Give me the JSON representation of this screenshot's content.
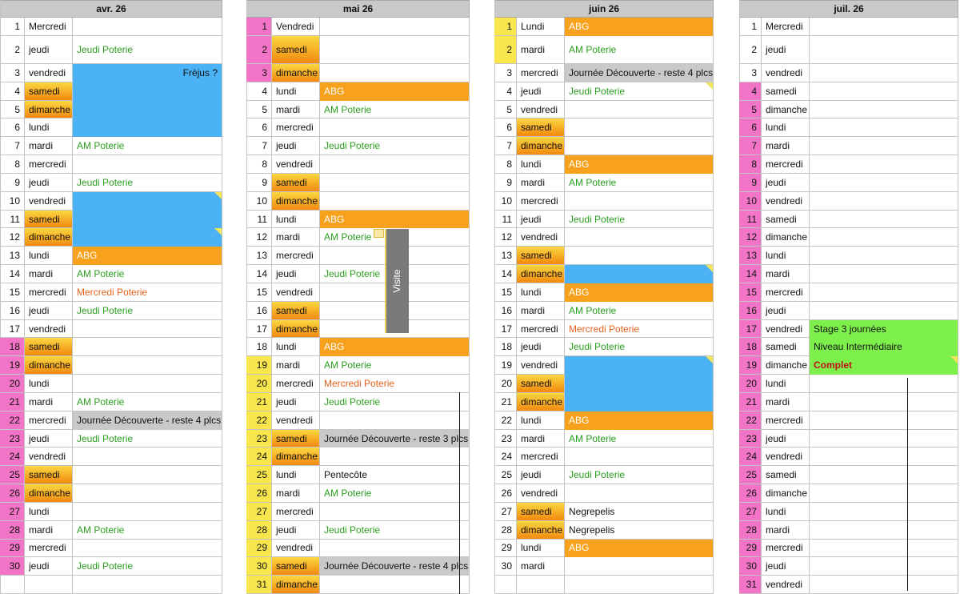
{
  "months": [
    {
      "title": "avr. 26",
      "rows": [
        {
          "num": 1,
          "day": "Mercredi"
        },
        {
          "num": 2,
          "day": "jeudi",
          "event": "Jeudi Poterie",
          "color": "#2b9e1e"
        },
        {
          "num": 3,
          "day": "vendredi",
          "fill": "#4bb2f6",
          "event": "Frèjus ?",
          "color": "#111111",
          "align": "right"
        },
        {
          "num": 4,
          "day": "samedi",
          "weekend": true,
          "fill": "#4bb2f6"
        },
        {
          "num": 5,
          "day": "dimanche",
          "weekend": true,
          "fill": "#4bb2f6"
        },
        {
          "num": 6,
          "day": "lundi",
          "fill": "#4bb2f6"
        },
        {
          "num": 7,
          "day": "mardi",
          "event": "AM Poterie",
          "color": "#2b9e1e"
        },
        {
          "num": 8,
          "day": "mercredi"
        },
        {
          "num": 9,
          "day": "jeudi",
          "event": "Jeudi Poterie",
          "color": "#2b9e1e"
        },
        {
          "num": 10,
          "day": "vendredi",
          "fill": "#4bb2f6",
          "corner": true
        },
        {
          "num": 11,
          "day": "samedi",
          "weekend": true,
          "fill": "#4bb2f6"
        },
        {
          "num": 12,
          "day": "dimanche",
          "weekend": true,
          "fill": "#4bb2f6",
          "corner": true
        },
        {
          "num": 13,
          "day": "lundi",
          "fill": "#f7a11c",
          "event": "ABG",
          "color": "#ffffff"
        },
        {
          "num": 14,
          "day": "mardi",
          "event": "AM Poterie",
          "color": "#2b9e1e"
        },
        {
          "num": 15,
          "day": "mercredi",
          "event": "Mercredi Poterie",
          "color": "#e5621c"
        },
        {
          "num": 16,
          "day": "jeudi",
          "event": "Jeudi Poterie",
          "color": "#2b9e1e"
        },
        {
          "num": 17,
          "day": "vendredi"
        },
        {
          "num": 18,
          "day": "samedi",
          "num_fill": "#f274c6",
          "weekend": true
        },
        {
          "num": 19,
          "day": "dimanche",
          "num_fill": "#f274c6",
          "weekend": true
        },
        {
          "num": 20,
          "day": "lundi",
          "num_fill": "#f274c6"
        },
        {
          "num": 21,
          "day": "mardi",
          "num_fill": "#f274c6",
          "event": "AM Poterie",
          "color": "#2b9e1e"
        },
        {
          "num": 22,
          "day": "mercredi",
          "num_fill": "#f274c6",
          "fill": "#c9c9c9",
          "event": "Journée Découverte - reste 4 plcs.",
          "color": "#111111"
        },
        {
          "num": 23,
          "day": "jeudi",
          "num_fill": "#f274c6",
          "event": "Jeudi Poterie",
          "color": "#2b9e1e"
        },
        {
          "num": 24,
          "day": "vendredi",
          "num_fill": "#f274c6"
        },
        {
          "num": 25,
          "day": "samedi",
          "num_fill": "#f274c6",
          "weekend": true
        },
        {
          "num": 26,
          "day": "dimanche",
          "num_fill": "#f274c6",
          "weekend": true
        },
        {
          "num": 27,
          "day": "lundi",
          "num_fill": "#f274c6"
        },
        {
          "num": 28,
          "day": "mardi",
          "num_fill": "#f274c6",
          "event": "AM Poterie",
          "color": "#2b9e1e"
        },
        {
          "num": 29,
          "day": "mercredi",
          "num_fill": "#f274c6"
        },
        {
          "num": 30,
          "day": "jeudi",
          "num_fill": "#f274c6",
          "event": "Jeudi Poterie",
          "color": "#2b9e1e"
        }
      ]
    },
    {
      "title": "mai 26",
      "note": "Visite",
      "rows": [
        {
          "num": 1,
          "day": "Vendredi",
          "num_fill": "#f274c6"
        },
        {
          "num": 2,
          "day": "samedi",
          "num_fill": "#f274c6",
          "weekend": true
        },
        {
          "num": 3,
          "day": "dimanche",
          "num_fill": "#f274c6",
          "weekend": true
        },
        {
          "num": 4,
          "day": "lundi",
          "fill": "#f7a11c",
          "event": "ABG",
          "color": "#ffffff"
        },
        {
          "num": 5,
          "day": "mardi",
          "event": "AM Poterie",
          "color": "#2b9e1e"
        },
        {
          "num": 6,
          "day": "mercredi"
        },
        {
          "num": 7,
          "day": "jeudi",
          "event": "Jeudi Poterie",
          "color": "#2b9e1e"
        },
        {
          "num": 8,
          "day": "vendredi"
        },
        {
          "num": 9,
          "day": "samedi",
          "weekend": true
        },
        {
          "num": 10,
          "day": "dimanche",
          "weekend": true
        },
        {
          "num": 11,
          "day": "lundi",
          "fill": "#f7a11c",
          "event": "ABG",
          "color": "#ffffff"
        },
        {
          "num": 12,
          "day": "mardi",
          "event": "AM Poterie",
          "color": "#2b9e1e"
        },
        {
          "num": 13,
          "day": "mercredi"
        },
        {
          "num": 14,
          "day": "jeudi",
          "event": "Jeudi Poterie",
          "color": "#2b9e1e"
        },
        {
          "num": 15,
          "day": "vendredi"
        },
        {
          "num": 16,
          "day": "samedi",
          "weekend": true
        },
        {
          "num": 17,
          "day": "dimanche",
          "weekend": true
        },
        {
          "num": 18,
          "day": "lundi",
          "fill": "#f7a11c",
          "event": "ABG",
          "color": "#ffffff"
        },
        {
          "num": 19,
          "day": "mardi",
          "num_fill": "#f8e64c",
          "event": "AM Poterie",
          "color": "#2b9e1e"
        },
        {
          "num": 20,
          "day": "mercredi",
          "num_fill": "#f8e64c",
          "event": "Mercredi Poterie",
          "color": "#e5621c"
        },
        {
          "num": 21,
          "day": "jeudi",
          "num_fill": "#f8e64c",
          "event": "Jeudi Poterie",
          "color": "#2b9e1e"
        },
        {
          "num": 22,
          "day": "vendredi",
          "num_fill": "#f8e64c"
        },
        {
          "num": 23,
          "day": "samedi",
          "num_fill": "#f8e64c",
          "weekend": true,
          "fill": "#c9c9c9",
          "event": "Journée Découverte - reste 3 plcs.",
          "color": "#111111"
        },
        {
          "num": 24,
          "day": "dimanche",
          "num_fill": "#f8e64c",
          "weekend": true
        },
        {
          "num": 25,
          "day": "lundi",
          "num_fill": "#f8e64c",
          "event": "Pentecôte",
          "color": "#111111"
        },
        {
          "num": 26,
          "day": "mardi",
          "num_fill": "#f8e64c",
          "event": "AM Poterie",
          "color": "#2b9e1e"
        },
        {
          "num": 27,
          "day": "mercredi",
          "num_fill": "#f8e64c"
        },
        {
          "num": 28,
          "day": "jeudi",
          "num_fill": "#f8e64c",
          "event": "Jeudi Poterie",
          "color": "#2b9e1e"
        },
        {
          "num": 29,
          "day": "vendredi",
          "num_fill": "#f8e64c"
        },
        {
          "num": 30,
          "day": "samedi",
          "num_fill": "#f8e64c",
          "weekend": true,
          "fill": "#c9c9c9",
          "event": "Journée Découverte - reste 4 plcs.",
          "color": "#111111"
        },
        {
          "num": 31,
          "day": "dimanche",
          "num_fill": "#f8e64c",
          "weekend": true
        }
      ]
    },
    {
      "title": "juin 26",
      "rows": [
        {
          "num": 1,
          "day": "Lundi",
          "num_fill": "#f8e64c",
          "fill": "#f7a11c",
          "event": "ABG",
          "color": "#ffffff"
        },
        {
          "num": 2,
          "day": "mardi",
          "num_fill": "#f8e64c",
          "event": "AM Poterie",
          "color": "#2b9e1e"
        },
        {
          "num": 3,
          "day": "mercredi",
          "fill": "#c9c9c9",
          "event": "Journée Découverte - reste 4 plcs.",
          "color": "#111111"
        },
        {
          "num": 4,
          "day": "jeudi",
          "event": "Jeudi Poterie",
          "color": "#2b9e1e",
          "corner": true
        },
        {
          "num": 5,
          "day": "vendredi"
        },
        {
          "num": 6,
          "day": "samedi",
          "weekend": true
        },
        {
          "num": 7,
          "day": "dimanche",
          "weekend": true
        },
        {
          "num": 8,
          "day": "lundi",
          "fill": "#f7a11c",
          "event": "ABG",
          "color": "#ffffff"
        },
        {
          "num": 9,
          "day": "mardi",
          "event": "AM Poterie",
          "color": "#2b9e1e"
        },
        {
          "num": 10,
          "day": "mercredi"
        },
        {
          "num": 11,
          "day": "jeudi",
          "event": "Jeudi Poterie",
          "color": "#2b9e1e"
        },
        {
          "num": 12,
          "day": "vendredi"
        },
        {
          "num": 13,
          "day": "samedi",
          "weekend": true
        },
        {
          "num": 14,
          "day": "dimanche",
          "weekend": true,
          "fill": "#4bb2f6",
          "corner": true
        },
        {
          "num": 15,
          "day": "lundi",
          "fill": "#f7a11c",
          "event": "ABG",
          "color": "#ffffff"
        },
        {
          "num": 16,
          "day": "mardi",
          "event": "AM Poterie",
          "color": "#2b9e1e"
        },
        {
          "num": 17,
          "day": "mercredi",
          "event": "Mercredi Poterie",
          "color": "#e5621c"
        },
        {
          "num": 18,
          "day": "jeudi",
          "event": "Jeudi Poterie",
          "color": "#2b9e1e"
        },
        {
          "num": 19,
          "day": "vendredi",
          "fill": "#4bb2f6",
          "corner": true
        },
        {
          "num": 20,
          "day": "samedi",
          "weekend": true,
          "fill": "#4bb2f6"
        },
        {
          "num": 21,
          "day": "dimanche",
          "weekend": true,
          "fill": "#4bb2f6"
        },
        {
          "num": 22,
          "day": "lundi",
          "fill": "#f7a11c",
          "event": "ABG",
          "color": "#ffffff"
        },
        {
          "num": 23,
          "day": "mardi",
          "event": "AM Poterie",
          "color": "#2b9e1e"
        },
        {
          "num": 24,
          "day": "mercredi"
        },
        {
          "num": 25,
          "day": "jeudi",
          "event": "Jeudi Poterie",
          "color": "#2b9e1e"
        },
        {
          "num": 26,
          "day": "vendredi"
        },
        {
          "num": 27,
          "day": "samedi",
          "weekend": true,
          "event": "Negrepelis",
          "color": "#111111"
        },
        {
          "num": 28,
          "day": "dimanche",
          "weekend": true,
          "event": "Negrepelis",
          "color": "#111111"
        },
        {
          "num": 29,
          "day": "lundi",
          "fill": "#f7a11c",
          "event": "ABG",
          "color": "#ffffff"
        },
        {
          "num": 30,
          "day": "mardi"
        }
      ]
    },
    {
      "title": "juil. 26",
      "rows": [
        {
          "num": 1,
          "day": "Mercredi"
        },
        {
          "num": 2,
          "day": "jeudi"
        },
        {
          "num": 3,
          "day": "vendredi"
        },
        {
          "num": 4,
          "day": "samedi",
          "num_fill": "#f274c6"
        },
        {
          "num": 5,
          "day": "dimanche",
          "num_fill": "#f274c6"
        },
        {
          "num": 6,
          "day": "lundi",
          "num_fill": "#f274c6"
        },
        {
          "num": 7,
          "day": "mardi",
          "num_fill": "#f274c6"
        },
        {
          "num": 8,
          "day": "mercredi",
          "num_fill": "#f274c6"
        },
        {
          "num": 9,
          "day": "jeudi",
          "num_fill": "#f274c6"
        },
        {
          "num": 10,
          "day": "vendredi",
          "num_fill": "#f274c6"
        },
        {
          "num": 11,
          "day": "samedi",
          "num_fill": "#f274c6"
        },
        {
          "num": 12,
          "day": "dimanche",
          "num_fill": "#f274c6"
        },
        {
          "num": 13,
          "day": "lundi",
          "num_fill": "#f274c6"
        },
        {
          "num": 14,
          "day": "mardi",
          "num_fill": "#f274c6"
        },
        {
          "num": 15,
          "day": "mercredi",
          "num_fill": "#f274c6"
        },
        {
          "num": 16,
          "day": "jeudi",
          "num_fill": "#f274c6"
        },
        {
          "num": 17,
          "day": "vendredi",
          "num_fill": "#f274c6",
          "fill": "#7ef04c",
          "event": "Stage 3 journées",
          "color": "#111111"
        },
        {
          "num": 18,
          "day": "samedi",
          "num_fill": "#f274c6",
          "fill": "#7ef04c",
          "event": "Niveau Intermédiaire",
          "color": "#111111"
        },
        {
          "num": 19,
          "day": "dimanche",
          "num_fill": "#f274c6",
          "fill": "#7ef04c",
          "event": "Complet",
          "color": "#c0101a",
          "bold": true,
          "corner": true
        },
        {
          "num": 20,
          "day": "lundi",
          "num_fill": "#f274c6"
        },
        {
          "num": 21,
          "day": "mardi",
          "num_fill": "#f274c6"
        },
        {
          "num": 22,
          "day": "mercredi",
          "num_fill": "#f274c6"
        },
        {
          "num": 23,
          "day": "jeudi",
          "num_fill": "#f274c6"
        },
        {
          "num": 24,
          "day": "vendredi",
          "num_fill": "#f274c6"
        },
        {
          "num": 25,
          "day": "samedi",
          "num_fill": "#f274c6"
        },
        {
          "num": 26,
          "day": "dimanche",
          "num_fill": "#f274c6"
        },
        {
          "num": 27,
          "day": "lundi",
          "num_fill": "#f274c6"
        },
        {
          "num": 28,
          "day": "mardi",
          "num_fill": "#f274c6"
        },
        {
          "num": 29,
          "day": "mercredi",
          "num_fill": "#f274c6"
        },
        {
          "num": 30,
          "day": "jeudi",
          "num_fill": "#f274c6"
        },
        {
          "num": 31,
          "day": "vendredi",
          "num_fill": "#f274c6"
        }
      ]
    }
  ]
}
